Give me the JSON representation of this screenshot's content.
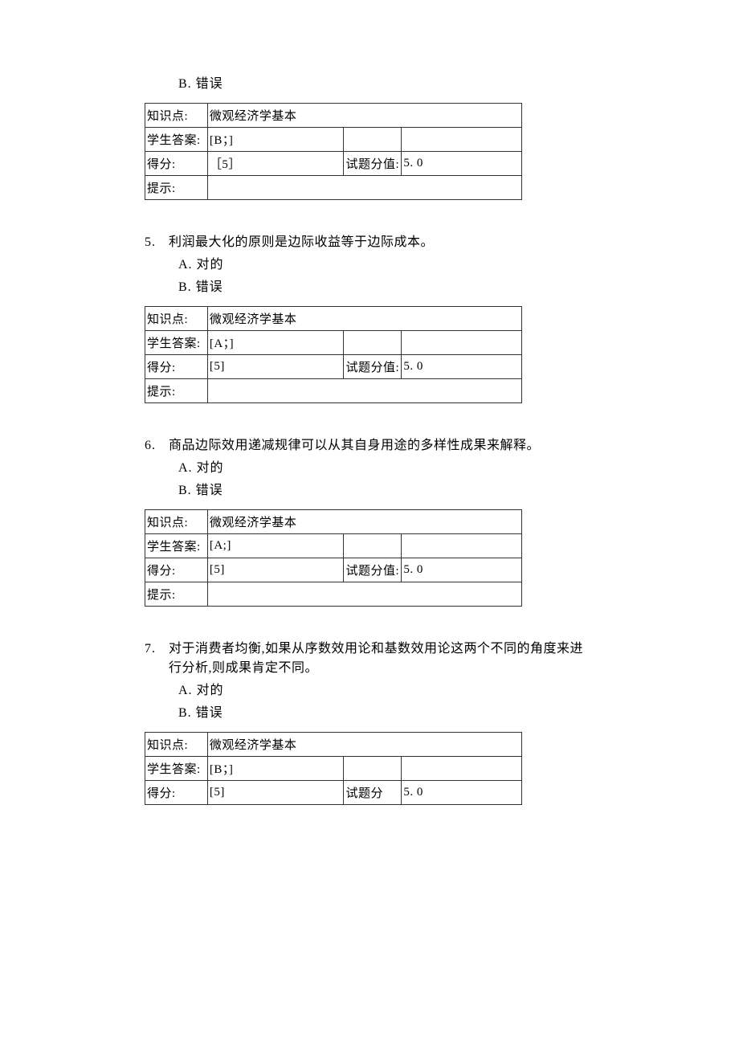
{
  "options": {
    "a_label": "A.  对的",
    "b_label": "B.  错误"
  },
  "table_labels": {
    "knowledge": "知识点:",
    "student_answer": "学生答案:",
    "score": "得分:",
    "item_value": "试题分值:",
    "hint": "提示:"
  },
  "questions": [
    {
      "num": "",
      "text": "",
      "show_options": [
        "b"
      ],
      "knowledge_point": "微观经济学基本",
      "student_answer": "[B；]",
      "score": "［5］",
      "item_value": "5. 0",
      "hint": "",
      "show_hint": true
    },
    {
      "num": "5.",
      "text": "利润最大化的原则是边际收益等于边际成本。",
      "show_options": [
        "a",
        "b"
      ],
      "knowledge_point": "微观经济学基本",
      "student_answer": "[A；]",
      "score": "[5]",
      "item_value": "5.  0",
      "hint": "",
      "show_hint": true
    },
    {
      "num": "6.",
      "text": "商品边际效用递减规律可以从其自身用途的多样性成果来解释。",
      "show_options": [
        "a",
        "b"
      ],
      "knowledge_point": "微观经济学基本",
      "student_answer": "[A;]",
      "score": "[5]",
      "item_value": "5.  0",
      "hint": "",
      "show_hint": true
    },
    {
      "num": "7.",
      "text": "对于消费者均衡,如果从序数效用论和基数效用论这两个不同的角度来进行分析,则成果肯定不同。",
      "show_options": [
        "a",
        "b"
      ],
      "knowledge_point": "微观经济学基本",
      "student_answer": "[B；]",
      "score": "[5]",
      "item_value": "5. 0",
      "hint": "",
      "show_hint": false,
      "compact_item_value_label": "试题分"
    }
  ]
}
